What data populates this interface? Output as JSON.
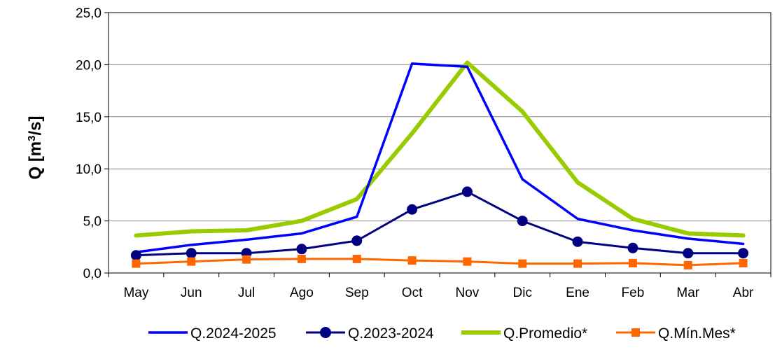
{
  "chart_data": {
    "type": "line",
    "title": "",
    "xlabel": "",
    "ylabel": "Q [m",
    "ylabel_sup": "3",
    "ylabel_suffix": "/s]",
    "categories": [
      "May",
      "Jun",
      "Jul",
      "Ago",
      "Sep",
      "Oct",
      "Nov",
      "Dic",
      "Ene",
      "Feb",
      "Mar",
      "Abr"
    ],
    "ylim": [
      0,
      25
    ],
    "yticks": [
      "0,0",
      "5,0",
      "10,0",
      "15,0",
      "20,0",
      "25,0"
    ],
    "grid": true,
    "legend_position": "bottom",
    "series": [
      {
        "name": "Q.2024-2025",
        "color": "#0000ff",
        "marker": "none",
        "values": [
          2.0,
          2.7,
          3.2,
          3.8,
          5.4,
          20.1,
          19.8,
          9.0,
          5.2,
          4.1,
          3.3,
          2.8
        ]
      },
      {
        "name": "Q.2023-2024",
        "color": "#000080",
        "marker": "circle",
        "values": [
          1.7,
          1.9,
          1.9,
          2.3,
          3.1,
          6.1,
          7.8,
          5.0,
          3.0,
          2.4,
          1.9,
          1.9
        ]
      },
      {
        "name": "Q.Promedio*",
        "color": "#99cc00",
        "marker": "none",
        "values": [
          3.6,
          4.0,
          4.1,
          5.0,
          7.1,
          13.4,
          20.2,
          15.5,
          8.7,
          5.2,
          3.8,
          3.6
        ]
      },
      {
        "name": "Q.Mín.Mes*",
        "color": "#ff6600",
        "marker": "square",
        "values": [
          0.9,
          1.1,
          1.3,
          1.35,
          1.35,
          1.2,
          1.1,
          0.9,
          0.9,
          0.95,
          0.75,
          0.95
        ]
      }
    ]
  }
}
